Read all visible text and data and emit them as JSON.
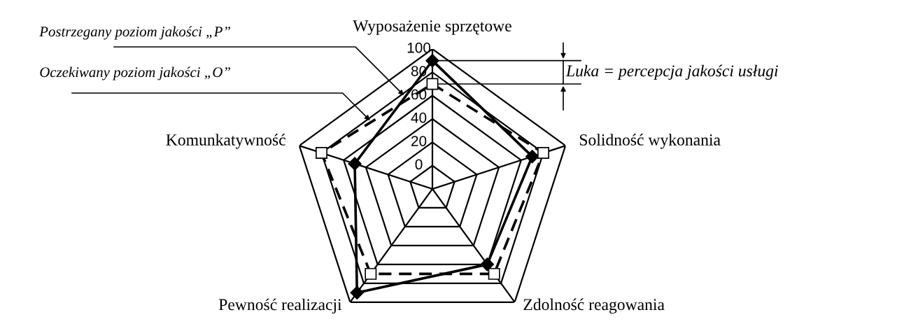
{
  "chart_data": {
    "type": "radar",
    "categories": [
      "Wyposażenie sprzętowe",
      "Solidność wykonania",
      "Zdolność reagowania",
      "Pewność realizacji",
      "Komunkatywność"
    ],
    "series": [
      {
        "name": "Postrzegany poziom jakości „P”",
        "color": "#000000",
        "marker": "diamond",
        "line_style": "solid",
        "values": [
          90,
          70,
          60,
          90,
          50
        ]
      },
      {
        "name": "Oczekiwany poziom jakości „O”",
        "color": "#000000",
        "marker": "square",
        "line_style": "dashed",
        "values": [
          70,
          80,
          70,
          70,
          80
        ]
      }
    ],
    "ylim": [
      -20,
      100
    ],
    "yticks": [
      0,
      20,
      40,
      60,
      80,
      100
    ],
    "grid": true,
    "annotations": [
      "Luka = percepcja jakości usługi"
    ]
  }
}
